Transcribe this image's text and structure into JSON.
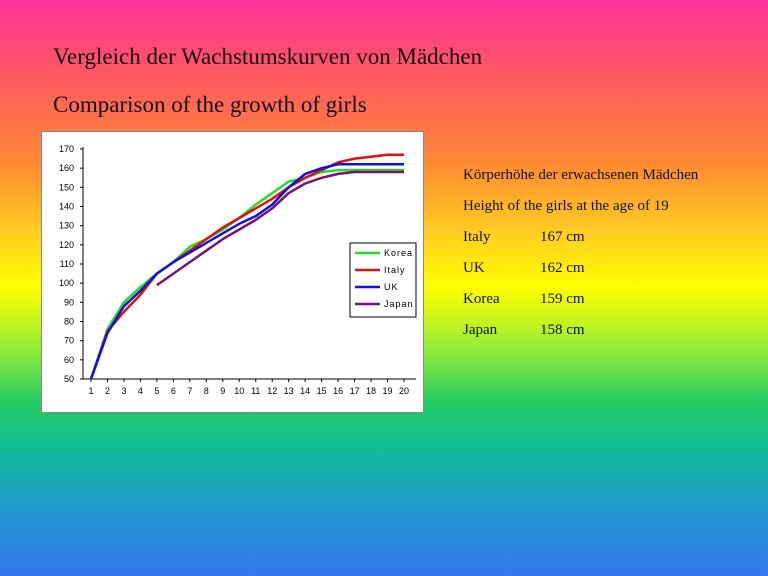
{
  "slide": {
    "title_de": "Vergleich der Wachstumskurven von Mädchen",
    "title_en": "Comparison of the growth of girls"
  },
  "info": {
    "heading_de": "Körperhöhe der erwachsenen Mädchen",
    "heading_en": "Height of the girls at the age of 19",
    "rows": [
      {
        "country": "Italy",
        "height": "167 cm"
      },
      {
        "country": "UK",
        "height": "162 cm"
      },
      {
        "country": "Korea",
        "height": "159 cm"
      },
      {
        "country": "Japan",
        "height": "158 cm"
      }
    ]
  },
  "chart_data": {
    "type": "line",
    "title": "",
    "xlabel": "",
    "ylabel": "",
    "x": [
      1,
      2,
      3,
      4,
      5,
      6,
      7,
      8,
      9,
      10,
      11,
      12,
      13,
      14,
      15,
      16,
      17,
      18,
      19,
      20
    ],
    "ylim": [
      50,
      170
    ],
    "yticks": [
      50,
      60,
      70,
      80,
      90,
      100,
      110,
      120,
      130,
      140,
      150,
      160,
      170
    ],
    "grid": false,
    "legend_position": "right",
    "series": [
      {
        "name": "Korea",
        "color": "#22dd22",
        "x": [
          1,
          2,
          3,
          4,
          5,
          6,
          7,
          8,
          9,
          10,
          11,
          12,
          13,
          14,
          15,
          16,
          17,
          18,
          19,
          20
        ],
        "values": [
          50,
          76,
          90,
          98,
          105,
          111,
          119,
          123,
          128,
          134,
          141,
          147,
          153,
          155,
          158,
          159,
          159,
          159,
          159,
          159
        ]
      },
      {
        "name": "Italy",
        "color": "#dd1111",
        "x": [
          1,
          2,
          3,
          4,
          5,
          6,
          7,
          8,
          9,
          10,
          11,
          12,
          13,
          14,
          15,
          16,
          17,
          18,
          19,
          20
        ],
        "values": [
          50,
          75,
          85,
          94,
          105,
          111,
          117,
          123,
          129,
          134,
          139,
          144,
          150,
          155,
          159,
          163,
          165,
          166,
          167,
          167
        ]
      },
      {
        "name": "UK",
        "color": "#1111dd",
        "x": [
          1,
          2,
          3,
          4,
          5,
          6,
          7,
          8,
          9,
          10,
          11,
          12,
          13,
          14,
          15,
          16,
          17,
          18,
          19,
          20
        ],
        "values": [
          50,
          74,
          88,
          96,
          105,
          111,
          116,
          121,
          126,
          131,
          135,
          141,
          150,
          157,
          160,
          162,
          162,
          162,
          162,
          162
        ]
      },
      {
        "name": "Japan",
        "color": "#771177",
        "x": [
          5,
          6,
          7,
          8,
          9,
          10,
          11,
          12,
          13,
          14,
          15,
          16,
          17,
          18,
          19,
          20
        ],
        "values": [
          99,
          105,
          111,
          117,
          123,
          128,
          133,
          139,
          147,
          152,
          155,
          157,
          158,
          158,
          158,
          158
        ]
      }
    ]
  }
}
